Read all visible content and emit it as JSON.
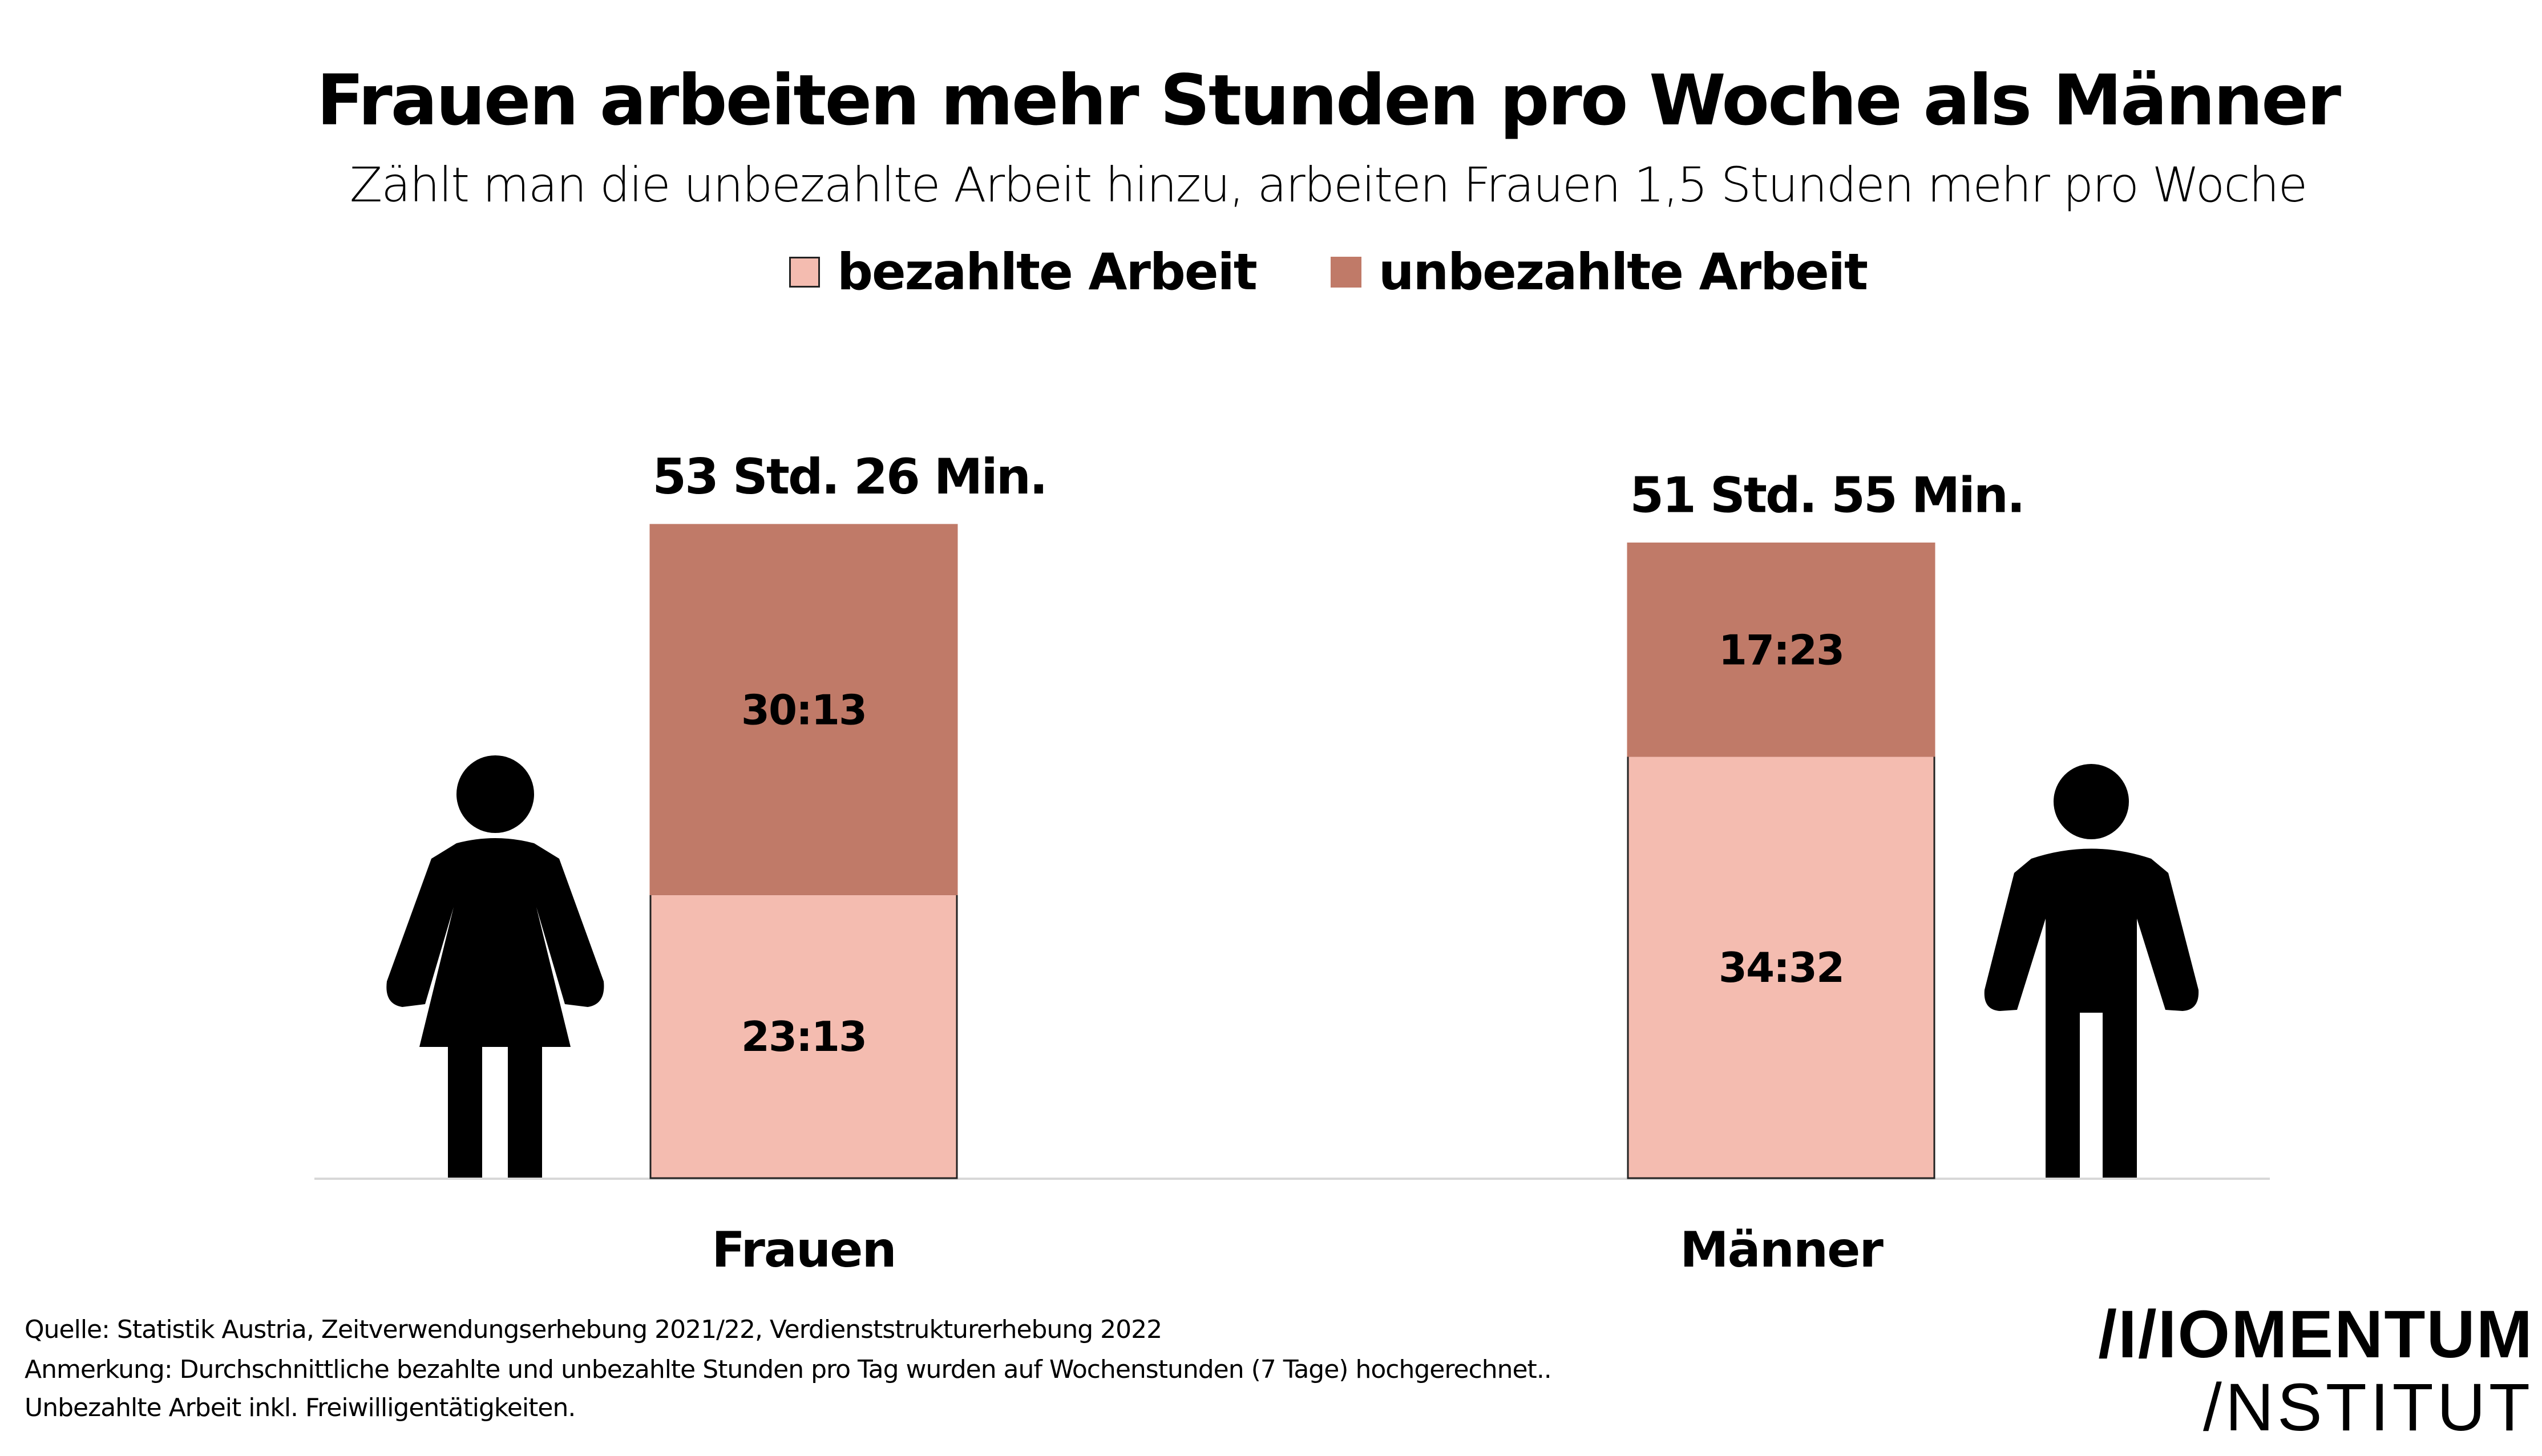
{
  "chart_data": {
    "type": "bar",
    "stacked": true,
    "title": "Frauen arbeiten mehr Stunden pro Woche als Männer",
    "subtitle": "Zählt man die unbezahlte Arbeit hinzu, arbeiten Frauen 1,5 Stunden mehr pro Woche",
    "categories": [
      "Frauen",
      "Männer"
    ],
    "series": [
      {
        "name": "bezahlte Arbeit",
        "color": "#f4bcb0",
        "values": [
          23.217,
          34.533
        ],
        "labels": [
          "23:13",
          "34:32"
        ]
      },
      {
        "name": "unbezahlte Arbeit",
        "color": "#c07a68",
        "values": [
          30.217,
          17.383
        ],
        "labels": [
          "30:13",
          "17:23"
        ]
      }
    ],
    "totals": [
      "53 Std. 26 Min.",
      "51 Std. 55 Min."
    ],
    "ylim": [
      0,
      53.43
    ],
    "legend": "top-center",
    "grid": false
  },
  "footnotes": [
    "Quelle: Statistik Austria, Zeitverwendungserhebung 2021/22, Verdienststrukturerhebung 2022",
    "Anmerkung: Durchschnittliche bezahlte und unbezahlte Stunden pro Tag wurden auf Wochenstunden (7 Tage) hochgerechnet..",
    "Unbezahlte Arbeit inkl. Freiwilligentätigkeiten."
  ],
  "logo": {
    "line1": "/I/IOMENTUM",
    "line2": "/NSTITUT"
  }
}
